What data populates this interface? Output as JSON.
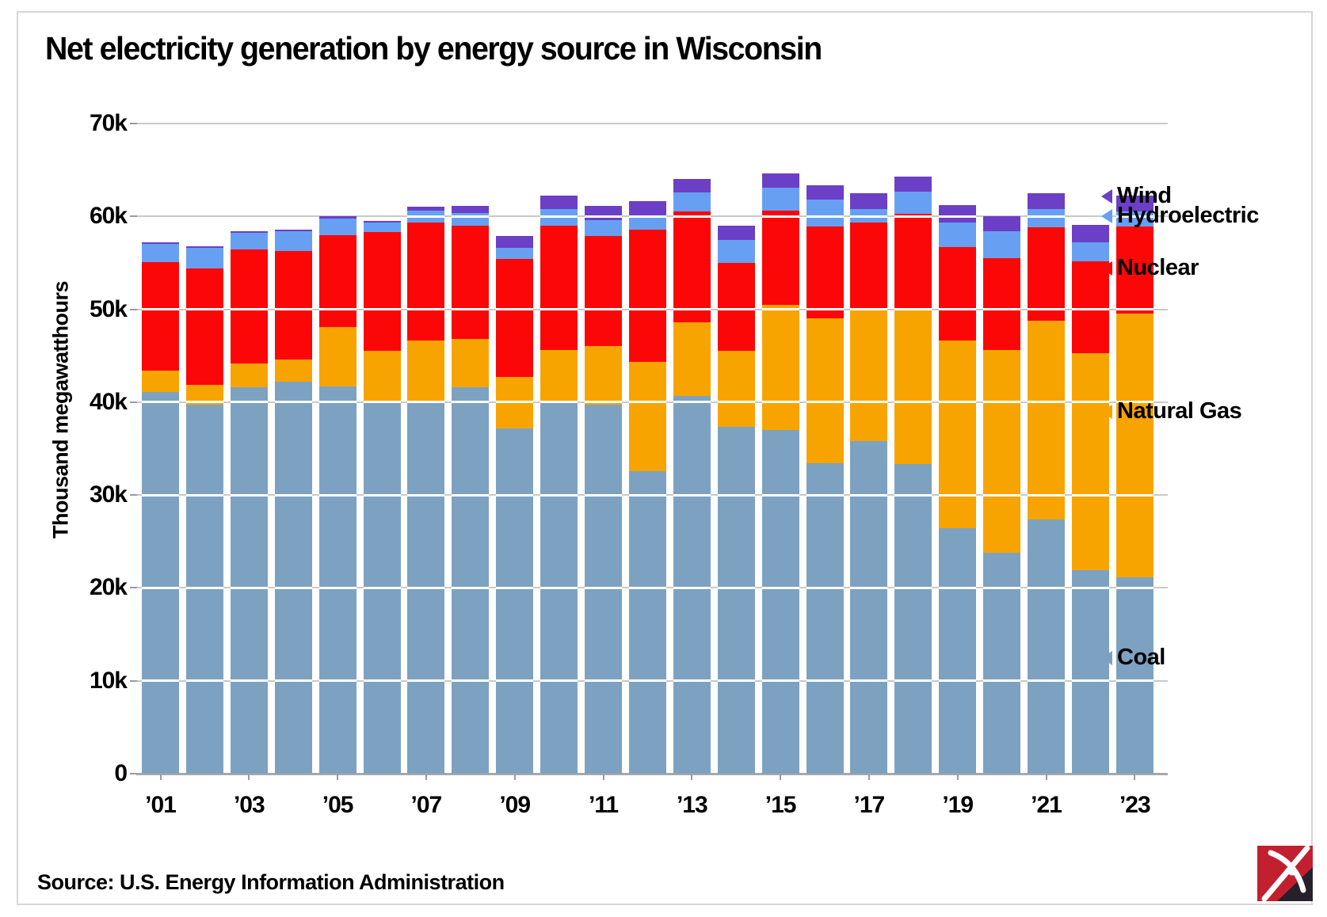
{
  "title": "Net electricity generation by energy source in Wisconsin",
  "source": "Source: U.S. Energy Information Administration",
  "y_axis": {
    "title": "Thousand megawatthours",
    "tick_labels": [
      "0",
      "10k",
      "20k",
      "30k",
      "40k",
      "50k",
      "60k",
      "70k"
    ]
  },
  "x_axis": {
    "tick_labels": [
      "’01",
      "’03",
      "’05",
      "’07",
      "’09",
      "’11",
      "’13",
      "’15",
      "’17",
      "’19",
      "’21",
      "’23"
    ]
  },
  "legend": [
    {
      "label": "Wind",
      "color": "#6b3fc6"
    },
    {
      "label": "Hydroelectric",
      "color": "#67a0f2"
    },
    {
      "label": "Nuclear",
      "color": "#fb0707"
    },
    {
      "label": "Natural Gas",
      "color": "#f7a400"
    },
    {
      "label": "Coal",
      "color": "#7da2c1"
    }
  ],
  "colors": {
    "coal": "#7da2c1",
    "natural_gas": "#f7a400",
    "nuclear": "#fb0707",
    "hydroelectric": "#67a0f2",
    "wind": "#6b3fc6",
    "gridline": "#c9c9c9",
    "axis_line": "#a8a8a8",
    "logo_red": "#c2202f"
  },
  "chart_data": {
    "type": "bar",
    "stacked": true,
    "title": "Net electricity generation by energy source in Wisconsin",
    "ylabel": "Thousand megawatthours",
    "unit": "thousand megawatthours",
    "ylim": [
      0,
      70000
    ],
    "grid": true,
    "legend_position": "right",
    "categories": [
      2001,
      2002,
      2003,
      2004,
      2005,
      2006,
      2007,
      2008,
      2009,
      2010,
      2011,
      2012,
      2013,
      2014,
      2015,
      2016,
      2017,
      2018,
      2019,
      2020,
      2021,
      2022,
      2023
    ],
    "series": [
      {
        "name": "Coal",
        "color": "#7da2c1",
        "values": [
          41100,
          39700,
          41600,
          42200,
          41700,
          40000,
          40000,
          41600,
          37200,
          39900,
          39700,
          32600,
          40700,
          37300,
          37000,
          33400,
          35800,
          33300,
          26400,
          23800,
          27400,
          21900,
          21100
        ]
      },
      {
        "name": "Natural Gas",
        "color": "#f7a400",
        "values": [
          2300,
          2200,
          2600,
          2400,
          6400,
          5500,
          6600,
          5200,
          5500,
          5700,
          6300,
          11700,
          7900,
          8200,
          13500,
          15600,
          14100,
          16800,
          20200,
          21800,
          21400,
          23400,
          28400
        ]
      },
      {
        "name": "Nuclear",
        "color": "#fb0707",
        "values": [
          11700,
          12500,
          12200,
          11700,
          9900,
          12800,
          12700,
          12200,
          12700,
          13400,
          11900,
          14300,
          11900,
          9500,
          10100,
          9900,
          9400,
          10200,
          10100,
          9900,
          10000,
          9900,
          9400
        ]
      },
      {
        "name": "Hydroelectric",
        "color": "#67a0f2",
        "values": [
          1900,
          2200,
          1800,
          2100,
          1800,
          1000,
          1300,
          1400,
          1200,
          1800,
          1700,
          1500,
          2100,
          2500,
          2500,
          2900,
          1500,
          2400,
          2600,
          2900,
          2000,
          2000,
          1600
        ]
      },
      {
        "name": "Wind",
        "color": "#6b3fc6",
        "values": [
          200,
          200,
          200,
          200,
          200,
          200,
          400,
          700,
          1300,
          1400,
          1500,
          1500,
          1400,
          1500,
          1500,
          1500,
          1700,
          1600,
          1900,
          1600,
          1700,
          1900,
          1700
        ]
      }
    ]
  }
}
